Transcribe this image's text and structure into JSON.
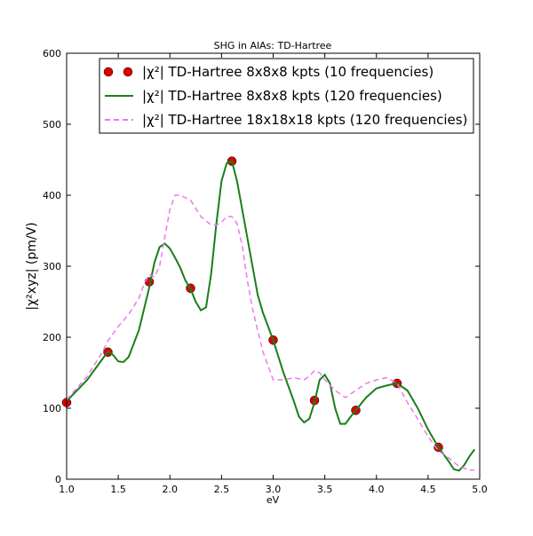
{
  "chart_data": {
    "type": "line",
    "title": "SHG in AlAs: TD-Hartree",
    "x_label": "eV",
    "y_label": "|χ²xyz| (pm/V)",
    "xlim": [
      1,
      5
    ],
    "ylim": [
      0,
      600
    ],
    "xticks": [
      {
        "value": 1,
        "label": "1.0"
      },
      {
        "value": 1.5,
        "label": "1.5"
      },
      {
        "value": 2,
        "label": "2.0"
      },
      {
        "value": 2.5,
        "label": "2.5"
      },
      {
        "value": 3,
        "label": "3.0"
      },
      {
        "value": 3.5,
        "label": "3.5"
      },
      {
        "value": 4,
        "label": "4.0"
      },
      {
        "value": 4.5,
        "label": "4.5"
      },
      {
        "value": 5,
        "label": "5.0"
      }
    ],
    "yticks": [
      0,
      100,
      200,
      300,
      400,
      500,
      600
    ],
    "legend": "upper right",
    "series": [
      {
        "name": "|χ²| TD-Hartree 8x8x8 kpts (10 frequencies)",
        "color": "#dd0000",
        "mode": "markers",
        "x": [
          1.0,
          1.4,
          1.8,
          2.2,
          2.6,
          3.0,
          3.4,
          3.8,
          4.2,
          4.6
        ],
        "values": [
          108,
          179,
          278,
          269,
          448,
          196,
          111,
          97,
          135,
          45
        ]
      },
      {
        "name": "|χ²| TD-Hartree 8x8x8 kpts (120 frequencies)",
        "color": "#1a7f1a",
        "mode": "solid",
        "x": [
          1.0,
          1.1,
          1.2,
          1.3,
          1.4,
          1.45,
          1.5,
          1.55,
          1.6,
          1.7,
          1.8,
          1.85,
          1.9,
          1.95,
          2.0,
          2.05,
          2.1,
          2.15,
          2.2,
          2.25,
          2.3,
          2.35,
          2.4,
          2.45,
          2.5,
          2.55,
          2.6,
          2.65,
          2.7,
          2.75,
          2.8,
          2.85,
          2.9,
          3.0,
          3.1,
          3.2,
          3.25,
          3.3,
          3.35,
          3.4,
          3.45,
          3.5,
          3.55,
          3.6,
          3.65,
          3.7,
          3.75,
          3.8,
          3.9,
          4.0,
          4.1,
          4.2,
          4.3,
          4.4,
          4.5,
          4.6,
          4.7,
          4.75,
          4.8,
          4.85,
          4.9,
          4.95
        ],
        "values": [
          110,
          125,
          140,
          160,
          180,
          175,
          166,
          165,
          172,
          210,
          270,
          305,
          327,
          332,
          325,
          312,
          298,
          280,
          268,
          250,
          238,
          242,
          290,
          360,
          420,
          445,
          448,
          420,
          380,
          340,
          300,
          260,
          235,
          196,
          150,
          110,
          88,
          80,
          85,
          108,
          140,
          147,
          135,
          100,
          78,
          78,
          88,
          97,
          115,
          128,
          132,
          135,
          125,
          100,
          70,
          45,
          25,
          14,
          12,
          20,
          32,
          42
        ]
      },
      {
        "name": "|χ²| TD-Hartree 18x18x18 kpts (120 frequencies)",
        "color": "#ee77ee",
        "mode": "dashed",
        "x": [
          1.0,
          1.2,
          1.35,
          1.4,
          1.5,
          1.6,
          1.7,
          1.75,
          1.8,
          1.85,
          1.9,
          1.95,
          2.0,
          2.05,
          2.1,
          2.2,
          2.3,
          2.4,
          2.45,
          2.5,
          2.55,
          2.6,
          2.65,
          2.7,
          2.75,
          2.8,
          2.9,
          2.95,
          3.0,
          3.1,
          3.2,
          3.3,
          3.35,
          3.4,
          3.45,
          3.5,
          3.6,
          3.7,
          3.8,
          3.9,
          4.0,
          4.1,
          4.2,
          4.3,
          4.4,
          4.5,
          4.6,
          4.7,
          4.8,
          4.9,
          4.95
        ],
        "values": [
          112,
          145,
          180,
          195,
          215,
          232,
          255,
          275,
          288,
          285,
          300,
          340,
          380,
          400,
          400,
          393,
          370,
          358,
          358,
          362,
          370,
          370,
          360,
          330,
          280,
          240,
          180,
          160,
          140,
          140,
          143,
          140,
          145,
          153,
          150,
          140,
          125,
          115,
          125,
          135,
          140,
          143,
          135,
          108,
          85,
          60,
          40,
          30,
          18,
          13,
          13
        ]
      }
    ]
  }
}
